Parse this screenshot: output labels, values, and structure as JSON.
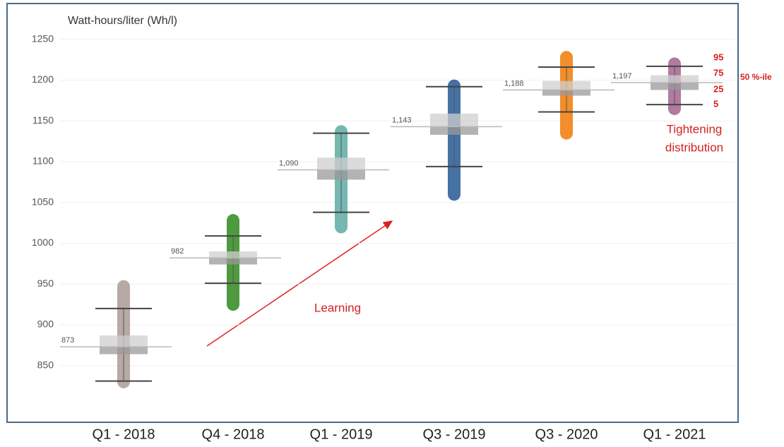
{
  "chart_data": {
    "type": "box",
    "y_axis_label": "Watt-hours/liter (Wh/l)",
    "categories": [
      "Q1 - 2018",
      "Q4 - 2018",
      "Q1 - 2019",
      "Q3 - 2019",
      "Q3 - 2020",
      "Q1 - 2021"
    ],
    "colors": [
      "#b7a9a3",
      "#4e9a3f",
      "#74b8b1",
      "#4571a4",
      "#f28e2b",
      "#b07aa1"
    ],
    "p5": [
      831,
      951,
      1038,
      1094,
      1161,
      1170
    ],
    "p25": [
      864,
      974,
      1078,
      1133,
      1181,
      1188
    ],
    "medians": [
      873,
      982,
      1090,
      1143,
      1188,
      1197
    ],
    "median_labels": [
      "873",
      "982",
      "1,090",
      "1,143",
      "1,188",
      "1,197"
    ],
    "p75": [
      887,
      990,
      1105,
      1159,
      1199,
      1206
    ],
    "p95": [
      920,
      1009,
      1135,
      1192,
      1216,
      1217
    ],
    "min": [
      830,
      925,
      1020,
      1060,
      1135,
      1165
    ],
    "max": [
      947,
      1028,
      1137,
      1193,
      1228,
      1220
    ],
    "ylim": [
      803,
      1255
    ],
    "yticks": [
      850,
      900,
      950,
      1000,
      1050,
      1100,
      1150,
      1200,
      1250
    ],
    "grid": true,
    "annotations": {
      "p95": "95",
      "p75": "75",
      "p25": "25",
      "p5": "5",
      "median": "50 %-ile",
      "tightening_1": "Tightening",
      "tightening_2": "distribution",
      "learning": "Learning"
    }
  }
}
